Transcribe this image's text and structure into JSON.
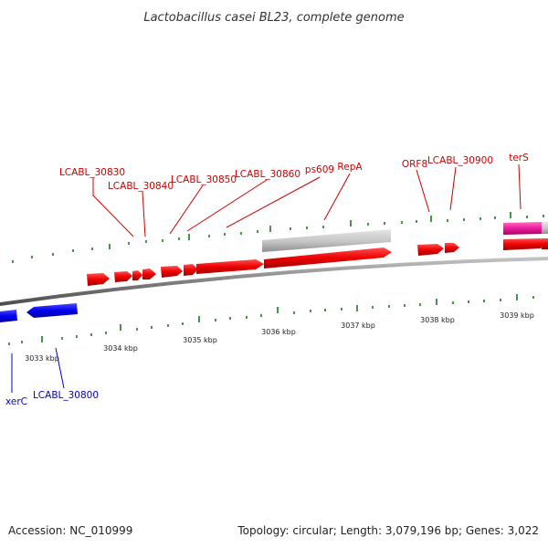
{
  "title": "Lactobacillus casei BL23, complete genome",
  "footer": {
    "accession": "Accession: NC_010999",
    "topology": "Topology: circular; Length: 3,079,196 bp; Genes: 3,022"
  },
  "colors": {
    "forward_gene": "#ff0000",
    "reverse_gene": "#0000ff",
    "pseudo_gene": "#c8c8c8",
    "rna_gene": "#ff2aa0",
    "tick": "#1a7a1a",
    "backbone": "#777777",
    "forward_label": "#cc0000",
    "reverse_label": "#0000cc"
  },
  "axis": {
    "unit": "kbp",
    "ticks": [
      "3033 kbp",
      "3034 kbp",
      "3035 kbp",
      "3036 kbp",
      "3037 kbp",
      "3038 kbp",
      "3039 kbp"
    ]
  },
  "labels_forward": [
    "LCABL_30830",
    "LCABL_30840",
    "LCABL_30850",
    "LCABL_30860",
    "ps609",
    "RepA",
    "ORF8",
    "LCABL_30900",
    "terS"
  ],
  "labels_reverse": [
    "xerC",
    "LCABL_30800"
  ]
}
